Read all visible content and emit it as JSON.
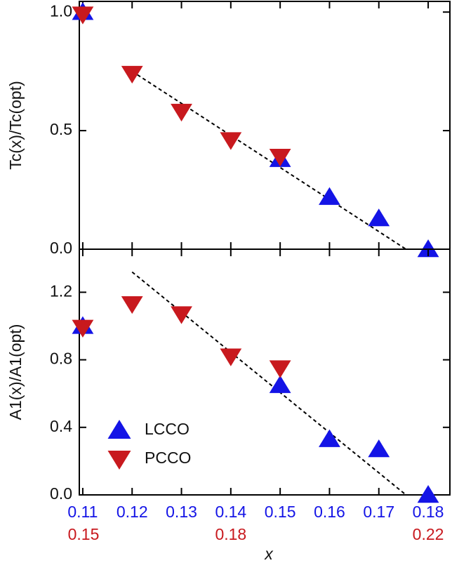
{
  "chart_data": [
    {
      "type": "scatter",
      "ylabel": "Tc(x)/Tc(opt)",
      "xlim": [
        0.1093,
        0.1844
      ],
      "ylim": [
        0,
        1.045
      ],
      "yticks": [
        {
          "value": 0,
          "label": "0.0"
        },
        0.5,
        {
          "value": 1,
          "label": "1.0"
        }
      ],
      "series": [
        {
          "name": "LCCO",
          "color": "#1414e6",
          "marker": "triangle-up",
          "x": [
            0.11,
            0.15,
            0.16,
            0.17,
            0.18
          ],
          "values": [
            1.0,
            0.38,
            0.22,
            0.13,
            0.0
          ]
        },
        {
          "name": "PCCO",
          "color": "#c8191e",
          "marker": "triangle-down",
          "x": [
            0.11,
            0.12,
            0.13,
            0.14,
            0.15
          ],
          "values": [
            0.99,
            0.74,
            0.58,
            0.46,
            0.39
          ]
        }
      ],
      "fit": {
        "x": [
          0.12,
          0.1755
        ],
        "y": [
          0.75,
          0
        ]
      }
    },
    {
      "type": "scatter",
      "ylabel": "A1(x)/A1(opt)",
      "xlabel": "x",
      "xlim": [
        0.1093,
        0.1844
      ],
      "xticks": [
        0.11,
        0.12,
        0.13,
        0.14,
        0.15,
        0.16,
        0.17,
        0.18
      ],
      "x2lim": [
        0.1493,
        0.2244
      ],
      "x2ticks": [
        0.15,
        0.18,
        0.22
      ],
      "ylim": [
        0,
        1.455
      ],
      "yticks": [
        {
          "value": 0,
          "label": "0.0"
        },
        0.4,
        0.8,
        1.2
      ],
      "legend": "lower left",
      "series": [
        {
          "name": "LCCO",
          "color": "#1414e6",
          "marker": "triangle-up",
          "x": [
            0.11,
            0.15,
            0.16,
            0.17,
            0.18
          ],
          "values": [
            1.0,
            0.65,
            0.33,
            0.27,
            0.0
          ]
        },
        {
          "name": "PCCO",
          "color": "#c8191e",
          "marker": "triangle-down",
          "x": [
            0.11,
            0.12,
            0.13,
            0.14,
            0.15
          ],
          "values": [
            0.99,
            1.13,
            1.07,
            0.82,
            0.75
          ]
        }
      ],
      "fit": {
        "x": [
          0.12,
          0.1755
        ],
        "y": [
          1.32,
          0
        ]
      }
    }
  ]
}
